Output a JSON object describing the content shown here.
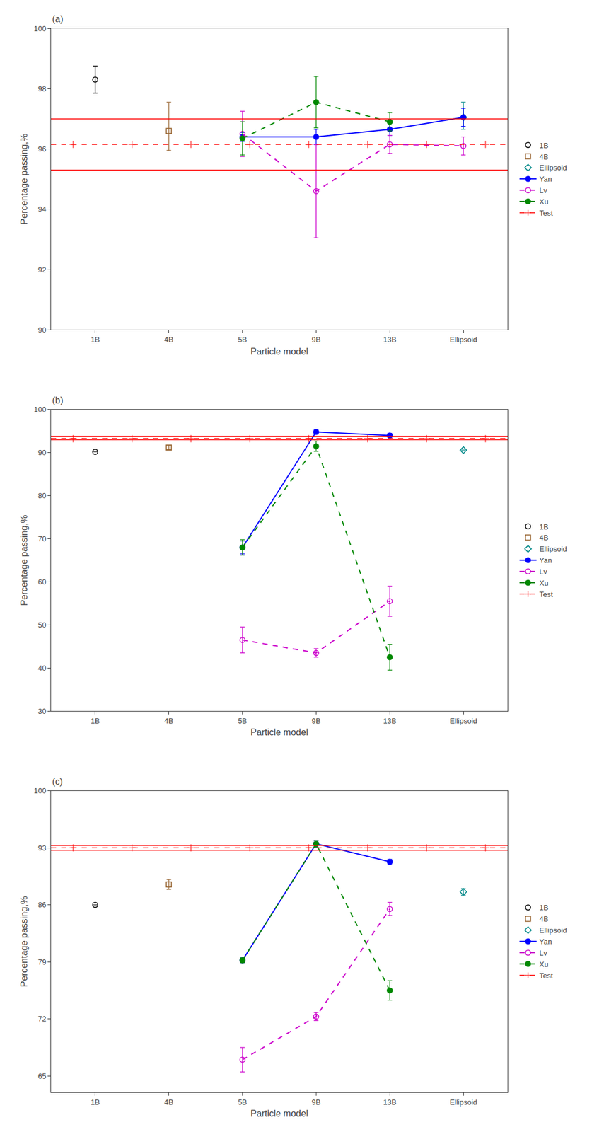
{
  "chart_data": [
    {
      "type": "line",
      "title": "(a)",
      "x_label": "Particle model",
      "y_label": "Percentage passing,%",
      "categories": [
        "1B",
        "4B",
        "5B",
        "9B",
        "13B",
        "Ellipsoid"
      ],
      "ylim": [
        90,
        100
      ],
      "yticks": [
        90,
        92,
        94,
        96,
        98,
        100
      ],
      "grid": false,
      "legend": "right",
      "series": [
        {
          "name": "1B",
          "color": "#000000",
          "marker": "circle-open",
          "line_style": "none",
          "values": [
            98.3,
            null,
            null,
            null,
            null,
            null
          ],
          "error_minus": [
            0.45,
            null,
            null,
            null,
            null,
            null
          ],
          "error_plus": [
            0.45,
            null,
            null,
            null,
            null,
            null
          ]
        },
        {
          "name": "4B",
          "color": "#996633",
          "marker": "square-open",
          "line_style": "none",
          "values": [
            null,
            96.6,
            null,
            null,
            null,
            null
          ],
          "error_minus": [
            null,
            0.65,
            null,
            null,
            null,
            null
          ],
          "error_plus": [
            null,
            0.95,
            null,
            null,
            null,
            null
          ]
        },
        {
          "name": "Ellipsoid",
          "color": "#008888",
          "marker": "diamond-open",
          "line_style": "none",
          "values": [
            null,
            null,
            null,
            null,
            null,
            97.05
          ],
          "error_minus": [
            null,
            null,
            null,
            null,
            null,
            0.4
          ],
          "error_plus": [
            null,
            null,
            null,
            null,
            null,
            0.5
          ]
        },
        {
          "name": "Yan",
          "color": "#0000FF",
          "marker": "circle",
          "line_style": "solid",
          "values": [
            null,
            null,
            96.4,
            96.4,
            96.65,
            97.05
          ],
          "error": [
            null,
            null,
            0.15,
            0.25,
            0.2,
            0.3
          ]
        },
        {
          "name": "Lv",
          "color": "#CC00CC",
          "marker": "circle-open",
          "line_style": "dashed",
          "values": [
            null,
            null,
            96.5,
            94.6,
            96.15,
            96.1
          ],
          "error": [
            null,
            null,
            0.75,
            1.55,
            0.3,
            0.3
          ]
        },
        {
          "name": "Xu",
          "color": "#008800",
          "marker": "circle",
          "line_style": "dashed",
          "values": [
            null,
            null,
            96.35,
            97.55,
            96.9,
            null
          ],
          "error": [
            null,
            null,
            0.55,
            0.85,
            0.3,
            null
          ]
        }
      ],
      "reference_lines": [
        {
          "name": "Test",
          "value": 96.15,
          "color": "#FF0000",
          "line_style": "dashed",
          "marker": "cross"
        },
        {
          "value": 97.0,
          "color": "#FF0000",
          "line_style": "solid"
        },
        {
          "value": 95.3,
          "color": "#FF0000",
          "line_style": "solid"
        }
      ]
    },
    {
      "type": "line",
      "title": "(b)",
      "x_label": "Particle model",
      "y_label": "Percentage passing,%",
      "categories": [
        "1B",
        "4B",
        "5B",
        "9B",
        "13B",
        "Ellipsoid"
      ],
      "ylim": [
        30,
        100
      ],
      "yticks": [
        30,
        40,
        50,
        60,
        70,
        80,
        90,
        100
      ],
      "grid": false,
      "legend": "right",
      "series": [
        {
          "name": "1B",
          "color": "#000000",
          "marker": "circle-open",
          "line_style": "none",
          "values": [
            90.2,
            null,
            null,
            null,
            null,
            null
          ],
          "error_minus": [
            0.0,
            null,
            null,
            null,
            null,
            null
          ],
          "error_plus": [
            0.0,
            null,
            null,
            null,
            null,
            null
          ]
        },
        {
          "name": "4B",
          "color": "#996633",
          "marker": "square-open",
          "line_style": "none",
          "values": [
            null,
            91.2,
            null,
            null,
            null,
            null
          ],
          "error_minus": [
            null,
            0.5,
            null,
            null,
            null,
            null
          ],
          "error_plus": [
            null,
            0.5,
            null,
            null,
            null,
            null
          ]
        },
        {
          "name": "Ellipsoid",
          "color": "#008888",
          "marker": "diamond-open",
          "line_style": "none",
          "values": [
            null,
            null,
            null,
            null,
            null,
            90.6
          ],
          "error_minus": [
            null,
            null,
            null,
            null,
            null,
            0.0
          ],
          "error_plus": [
            null,
            null,
            null,
            null,
            null,
            0.0
          ]
        },
        {
          "name": "Yan",
          "color": "#0000FF",
          "marker": "circle",
          "line_style": "solid",
          "values": [
            null,
            null,
            68.0,
            94.8,
            94.0,
            null
          ],
          "error": [
            null,
            null,
            1.5,
            0.5,
            0.5,
            null
          ]
        },
        {
          "name": "Lv",
          "color": "#CC00CC",
          "marker": "circle-open",
          "line_style": "dashed",
          "values": [
            null,
            null,
            46.5,
            43.5,
            55.5,
            null
          ],
          "error": [
            null,
            null,
            3.0,
            1.0,
            3.5,
            null
          ]
        },
        {
          "name": "Xu",
          "color": "#008800",
          "marker": "circle",
          "line_style": "dashed",
          "values": [
            null,
            null,
            68.0,
            91.5,
            42.5,
            null
          ],
          "error": [
            null,
            null,
            1.8,
            1.2,
            3.0,
            null
          ]
        }
      ],
      "reference_lines": [
        {
          "name": "Test",
          "value": 93.25,
          "color": "#FF0000",
          "line_style": "dashed",
          "marker": "cross"
        },
        {
          "value": 93.8,
          "color": "#FF0000",
          "line_style": "solid"
        },
        {
          "value": 93.0,
          "color": "#FF0000",
          "line_style": "solid"
        }
      ]
    },
    {
      "type": "line",
      "title": "(c)",
      "x_label": "Particle model",
      "y_label": "Percentage passing,%",
      "categories": [
        "1B",
        "4B",
        "5B",
        "9B",
        "13B",
        "Ellipsoid"
      ],
      "ylim": [
        63,
        100
      ],
      "yticks": [
        65,
        72,
        79,
        86,
        93,
        100
      ],
      "grid": false,
      "legend": "right",
      "series": [
        {
          "name": "1B",
          "color": "#000000",
          "marker": "circle-open",
          "line_style": "none",
          "values": [
            86.0,
            null,
            null,
            null,
            null,
            null
          ],
          "error_minus": [
            0.0,
            null,
            null,
            null,
            null,
            null
          ],
          "error_plus": [
            0.0,
            null,
            null,
            null,
            null,
            null
          ]
        },
        {
          "name": "4B",
          "color": "#996633",
          "marker": "square-open",
          "line_style": "none",
          "values": [
            null,
            88.5,
            null,
            null,
            null,
            null
          ],
          "error_minus": [
            null,
            0.6,
            null,
            null,
            null,
            null
          ],
          "error_plus": [
            null,
            0.6,
            null,
            null,
            null,
            null
          ]
        },
        {
          "name": "Ellipsoid",
          "color": "#008888",
          "marker": "diamond-open",
          "line_style": "none",
          "values": [
            null,
            null,
            null,
            null,
            null,
            87.6
          ],
          "error_minus": [
            null,
            null,
            null,
            null,
            null,
            0.4
          ],
          "error_plus": [
            null,
            null,
            null,
            null,
            null,
            0.4
          ]
        },
        {
          "name": "Yan",
          "color": "#0000FF",
          "marker": "circle",
          "line_style": "solid",
          "values": [
            null,
            null,
            79.2,
            93.5,
            91.3,
            null
          ],
          "error": [
            null,
            null,
            0.3,
            0.4,
            0.3,
            null
          ]
        },
        {
          "name": "Lv",
          "color": "#CC00CC",
          "marker": "circle-open",
          "line_style": "dashed",
          "values": [
            null,
            null,
            67.0,
            72.3,
            85.5,
            null
          ],
          "error": [
            null,
            null,
            1.5,
            0.5,
            0.8,
            null
          ]
        },
        {
          "name": "Xu",
          "color": "#008800",
          "marker": "circle",
          "line_style": "dashed",
          "values": [
            null,
            null,
            79.2,
            93.5,
            75.5,
            null
          ],
          "error": [
            null,
            null,
            0.3,
            0.4,
            1.2,
            null
          ]
        }
      ],
      "reference_lines": [
        {
          "name": "Test",
          "value": 93.0,
          "color": "#FF0000",
          "line_style": "dashed",
          "marker": "cross"
        },
        {
          "value": 93.3,
          "color": "#FF0000",
          "line_style": "solid"
        },
        {
          "value": 92.7,
          "color": "#FF0000",
          "line_style": "solid"
        }
      ]
    }
  ]
}
